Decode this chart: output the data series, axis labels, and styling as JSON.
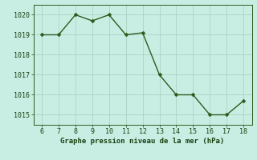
{
  "x": [
    6,
    7,
    8,
    9,
    10,
    11,
    12,
    13,
    14,
    15,
    16,
    17,
    18
  ],
  "y": [
    1019.0,
    1019.0,
    1020.0,
    1019.7,
    1020.0,
    1019.0,
    1019.1,
    1017.0,
    1016.0,
    1016.0,
    1015.0,
    1015.0,
    1015.7
  ],
  "line_color": "#2d5a1b",
  "marker_color": "#2d5a1b",
  "background_color": "#c8eee4",
  "grid_color": "#a8d4c4",
  "xlabel": "Graphe pression niveau de la mer (hPa)",
  "xlabel_color": "#1a4010",
  "tick_color": "#1a4010",
  "spine_color": "#2d5a1b",
  "xlim": [
    5.5,
    18.5
  ],
  "ylim": [
    1014.5,
    1020.5
  ],
  "xticks": [
    6,
    7,
    8,
    9,
    10,
    11,
    12,
    13,
    14,
    15,
    16,
    17,
    18
  ],
  "yticks": [
    1015,
    1016,
    1017,
    1018,
    1019,
    1020
  ],
  "xlabel_fontsize": 6.5,
  "tick_fontsize": 6,
  "linewidth": 1.0,
  "markersize": 2.5
}
